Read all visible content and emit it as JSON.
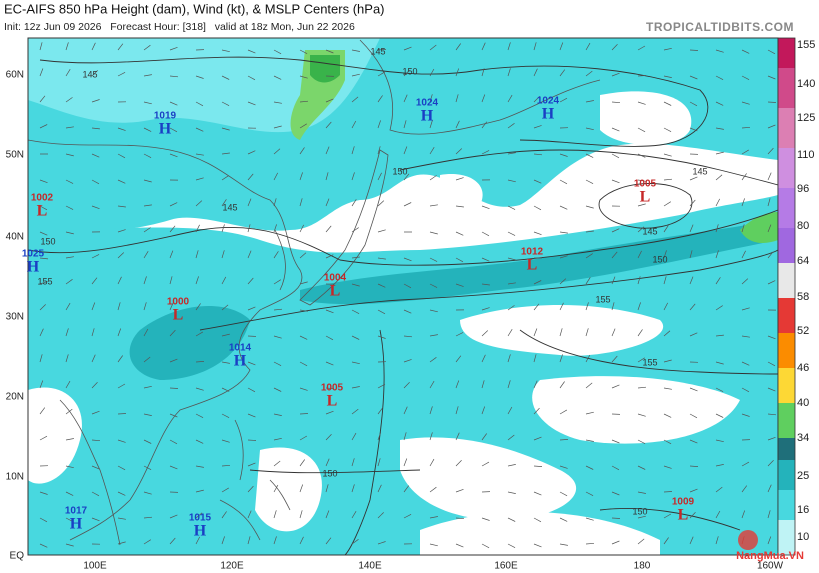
{
  "header": {
    "title": "EC-AIFS 850 hPa Height (dam), Wind (kt), & MSLP Centers (hPa)",
    "subtitle": "Init: 12z Jun 09 2026   Forecast Hour: [318]   valid at 18z Mon, Jun 22 2026",
    "source": "TROPICALTIDBITS.COM"
  },
  "latitude_labels": [
    "60N",
    "50N",
    "40N",
    "30N",
    "20N",
    "10N",
    "EQ"
  ],
  "longitude_labels": [
    "100E",
    "120E",
    "140E",
    "160E",
    "180",
    "160W"
  ],
  "colorbar_labels": [
    "155",
    "140",
    "125",
    "110",
    "96",
    "80",
    "64",
    "58",
    "52",
    "46",
    "40",
    "34",
    "25",
    "16",
    "10"
  ],
  "pressure_centers": [
    {
      "symbol": "H",
      "value": "1019"
    },
    {
      "symbol": "L",
      "value": "1002"
    },
    {
      "symbol": "H",
      "value": "1025"
    },
    {
      "symbol": "L",
      "value": "1000"
    },
    {
      "symbol": "H",
      "value": "1014"
    },
    {
      "symbol": "L",
      "value": "1004"
    },
    {
      "symbol": "L",
      "value": "1005"
    },
    {
      "symbol": "H",
      "value": "1024"
    },
    {
      "symbol": "H",
      "value": "1024"
    },
    {
      "symbol": "L",
      "value": "1005"
    },
    {
      "symbol": "L",
      "value": "1012"
    },
    {
      "symbol": "L",
      "value": "1009"
    },
    {
      "symbol": "H",
      "value": "1017"
    },
    {
      "symbol": "H",
      "value": "1015"
    }
  ],
  "contour_labels": [
    "145",
    "150",
    "145",
    "150",
    "145",
    "145",
    "150",
    "155",
    "155",
    "150",
    "150",
    "150",
    "155",
    "145"
  ],
  "watermark": "NangMua.VN"
}
